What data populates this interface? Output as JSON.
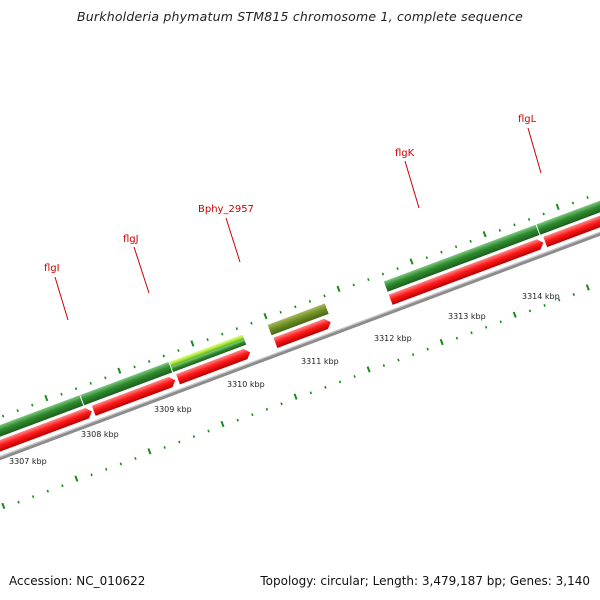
{
  "title": "Burkholderia phymatum STM815 chromosome 1, complete sequence",
  "footer": {
    "accession": "Accession: NC_010622",
    "summary": "Topology: circular; Length: 3,479,187 bp; Genes: 3,140"
  },
  "colors": {
    "feature_dark_green": "#2e8b2e",
    "feature_light_green": "#88e030",
    "feature_olive": "#6b8e23",
    "cds_red": "#ff1a1a",
    "backbone": "#8c8c8c",
    "tick_green": "#1a8a1a",
    "gene_label": "#cc0000",
    "scale_text": "#222222"
  },
  "scale_labels": [
    "3307 kbp",
    "3308 kbp",
    "3309 kbp",
    "3310 kbp",
    "3311 kbp",
    "3312 kbp",
    "3313 kbp",
    "3314 kbp"
  ],
  "gene_labels": [
    "flgI",
    "flgJ",
    "Bphy_2957",
    "flgK",
    "flgL"
  ]
}
